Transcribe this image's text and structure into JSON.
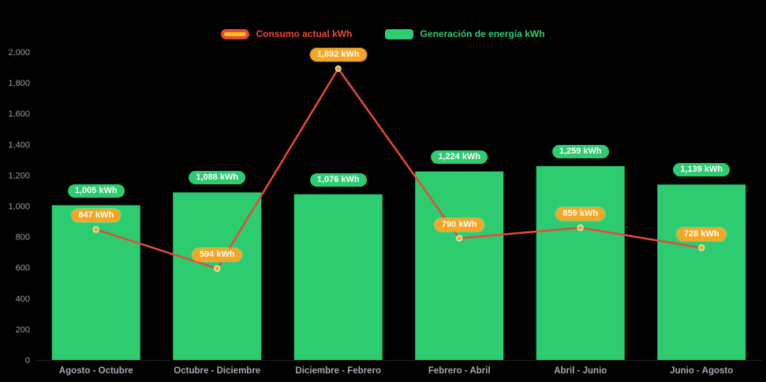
{
  "chart_data": {
    "type": "combo",
    "categories": [
      "Agosto - Octubre",
      "Octubre - Diciembre",
      "Diciembre - Febrero",
      "Febrero - Abril",
      "Abril - Junio",
      "Junio - Agosto"
    ],
    "series": [
      {
        "name": "Generación de energía kWh",
        "type": "bar",
        "color": "#2ecc71",
        "values": [
          1005,
          1088,
          1076,
          1224,
          1259,
          1139
        ],
        "labels": [
          "1,005 kWh",
          "1,088 kWh",
          "1,076 kWh",
          "1,224 kWh",
          "1,259 kWh",
          "1,139 kWh"
        ]
      },
      {
        "name": "Consumo actual kWh",
        "type": "line",
        "color": "#e8493a",
        "marker_color": "#f5a623",
        "values": [
          847,
          594,
          1892,
          790,
          859,
          728
        ],
        "labels": [
          "847 kWh",
          "594 kWh",
          "1,892 kWh",
          "790 kWh",
          "859 kWh",
          "728 kWh"
        ]
      }
    ],
    "ylim": [
      0,
      2000
    ],
    "yticks": [
      "0",
      "200",
      "400",
      "600",
      "800",
      "1,000",
      "1,200",
      "1,400",
      "1,600",
      "1,800",
      "2,000"
    ],
    "grid": false,
    "legend_position": "top-center",
    "background_color": "#000000",
    "title": "",
    "xlabel": "",
    "ylabel": ""
  }
}
